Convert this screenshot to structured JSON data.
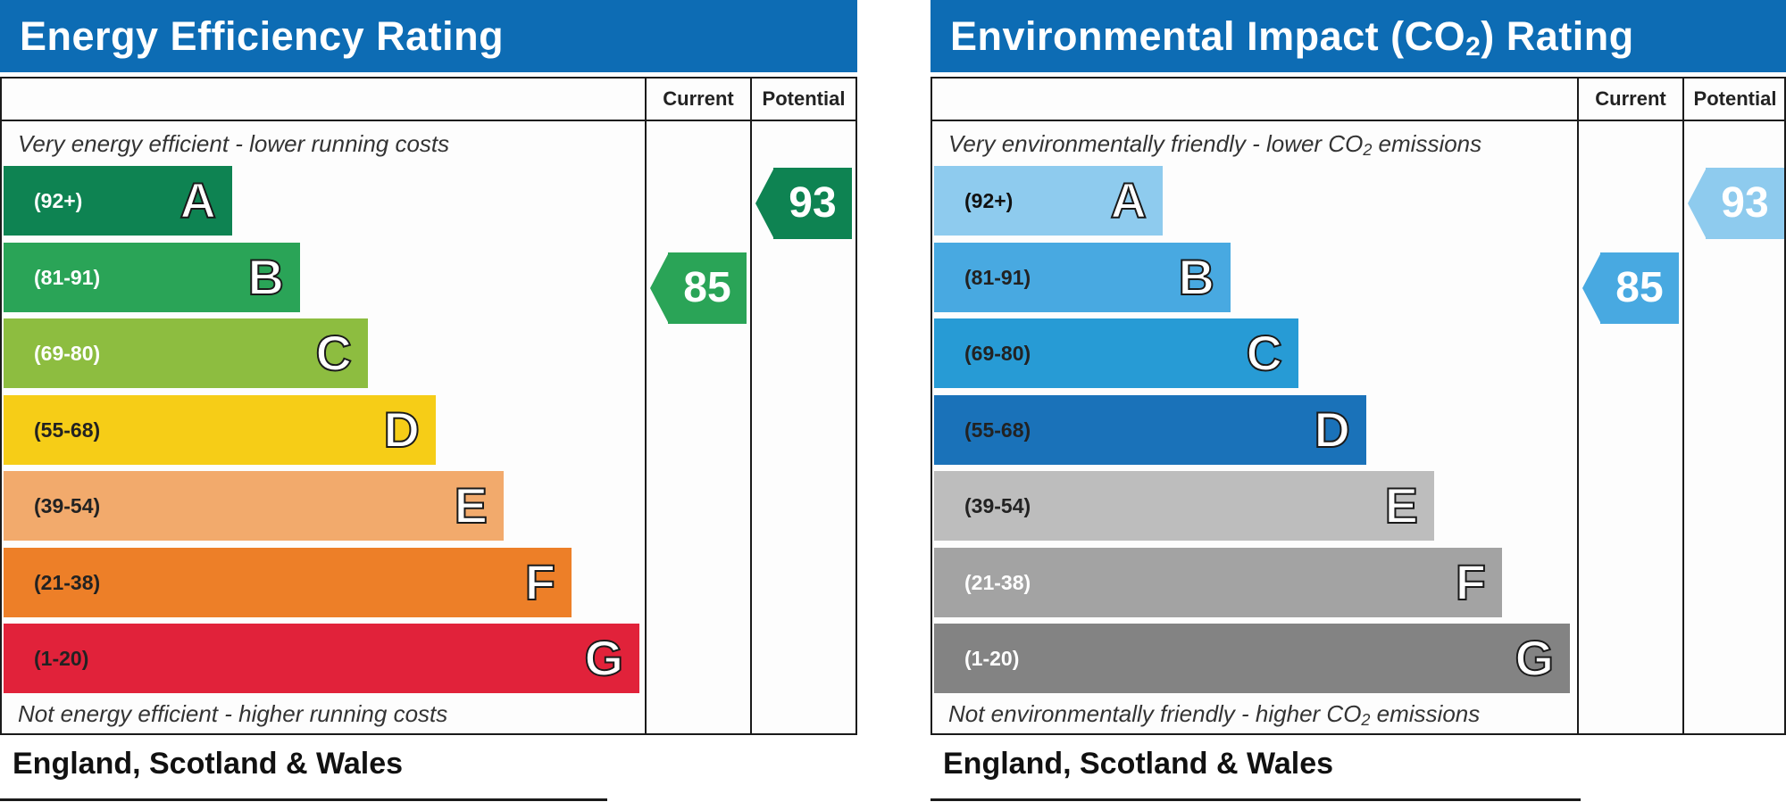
{
  "panels": [
    {
      "title": "Energy Efficiency Rating",
      "headers": {
        "current": "Current",
        "potential": "Potential"
      },
      "top_note": "Very energy efficient - lower running costs",
      "bottom_note": "Not energy efficient - higher running costs",
      "footer": "England, Scotland & Wales",
      "bands": [
        {
          "range": "(92+)",
          "letter": "A",
          "color": "#0e8352",
          "range_color": "#ffffff"
        },
        {
          "range": "(81-91)",
          "letter": "B",
          "color": "#2aa457",
          "range_color": "#ffffff"
        },
        {
          "range": "(69-80)",
          "letter": "C",
          "color": "#8dbd40",
          "range_color": "#ffffff"
        },
        {
          "range": "(55-68)",
          "letter": "D",
          "color": "#f6cd17",
          "range_color": "#222222"
        },
        {
          "range": "(39-54)",
          "letter": "E",
          "color": "#f2aa6c",
          "range_color": "#222222"
        },
        {
          "range": "(21-38)",
          "letter": "F",
          "color": "#ed7f28",
          "range_color": "#222222"
        },
        {
          "range": "(1-20)",
          "letter": "G",
          "color": "#e1223a",
          "range_color": "#222222"
        }
      ],
      "current": {
        "value": "85",
        "band": "B",
        "color": "#2aa457"
      },
      "potential": {
        "value": "93",
        "band": "A",
        "color": "#0e8352"
      }
    },
    {
      "title_main": "Environmental Impact (CO",
      "title_sub": "2",
      "title_end": ") Rating",
      "headers": {
        "current": "Current",
        "potential": "Potential"
      },
      "top_note_main": "Very environmentally friendly - lower CO",
      "top_note_sub": "2",
      "top_note_end": " emissions",
      "bottom_note_main": "Not environmentally friendly - higher CO",
      "bottom_note_sub": "2",
      "bottom_note_end": " emissions",
      "footer": "England, Scotland & Wales",
      "bands": [
        {
          "range": "(92+)",
          "letter": "A",
          "color": "#8ecbee",
          "range_color": "#111111"
        },
        {
          "range": "(81-91)",
          "letter": "B",
          "color": "#48a9e1",
          "range_color": "#222222"
        },
        {
          "range": "(69-80)",
          "letter": "C",
          "color": "#279bd5",
          "range_color": "#222222"
        },
        {
          "range": "(55-68)",
          "letter": "D",
          "color": "#1a72b9",
          "range_color": "#222222"
        },
        {
          "range": "(39-54)",
          "letter": "E",
          "color": "#bdbdbd",
          "range_color": "#222222"
        },
        {
          "range": "(21-38)",
          "letter": "F",
          "color": "#a3a3a3",
          "range_color": "#ffffff"
        },
        {
          "range": "(1-20)",
          "letter": "G",
          "color": "#838383",
          "range_color": "#ffffff"
        }
      ],
      "current": {
        "value": "85",
        "band": "B",
        "color": "#48a9e1"
      },
      "potential": {
        "value": "93",
        "band": "A",
        "color": "#8ecbee"
      }
    }
  ],
  "chart_data": [
    {
      "type": "bar",
      "title": "Energy Efficiency Rating",
      "categories": [
        "A",
        "B",
        "C",
        "D",
        "E",
        "F",
        "G"
      ],
      "ranges": [
        "(92+)",
        "(81-91)",
        "(69-80)",
        "(55-68)",
        "(39-54)",
        "(21-38)",
        "(1-20)"
      ],
      "current": 85,
      "potential": 93
    },
    {
      "type": "bar",
      "title": "Environmental Impact (CO2) Rating",
      "categories": [
        "A",
        "B",
        "C",
        "D",
        "E",
        "F",
        "G"
      ],
      "ranges": [
        "(92+)",
        "(81-91)",
        "(69-80)",
        "(55-68)",
        "(39-54)",
        "(21-38)",
        "(1-20)"
      ],
      "current": 85,
      "potential": 93
    }
  ]
}
